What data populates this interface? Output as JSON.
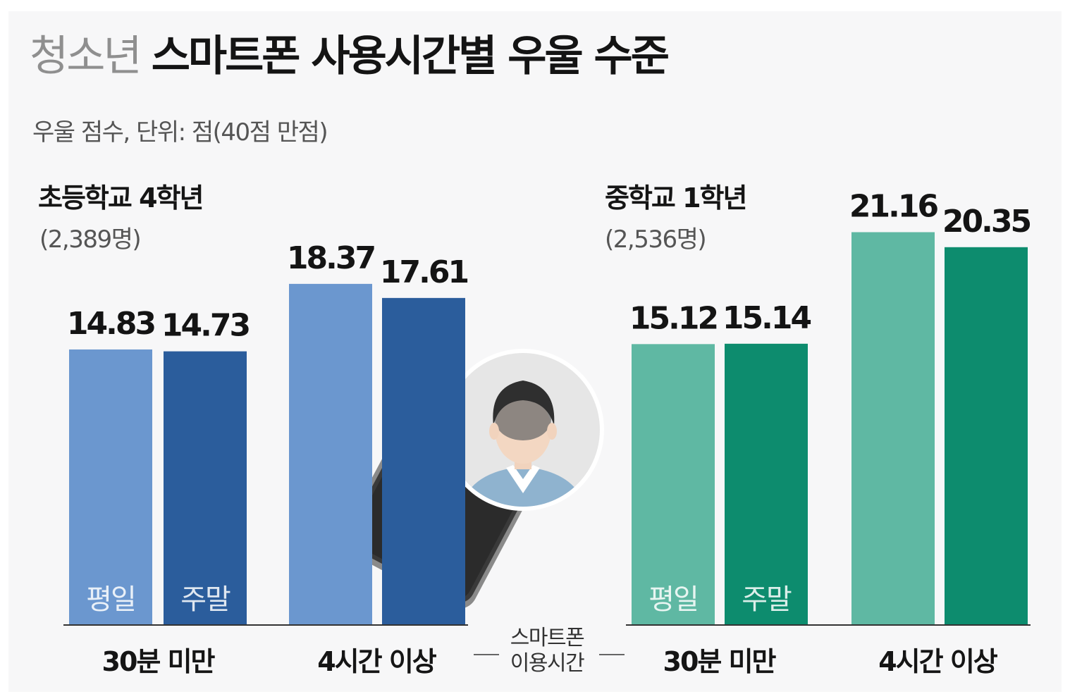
{
  "title": {
    "light": "청소년",
    "bold": "스마트폰 사용시간별 우울 수준"
  },
  "subtitle": "우울 점수, 단위: 점(40점 만점)",
  "colors": {
    "elementary_weekday": "#6b97cf",
    "elementary_weekend": "#2b5d9c",
    "middle_weekday": "#5fb8a3",
    "middle_weekend": "#0d8c6e",
    "background": "#f7f7f8"
  },
  "chart_data": {
    "type": "bar",
    "title": "청소년 스마트폰 사용시간별 우울 수준",
    "subtitle": "우울 점수, 단위: 점(40점 만점)",
    "xlabel": "스마트폰 이용시간",
    "ylim": [
      0,
      25
    ],
    "legend": [
      "평일",
      "주말"
    ],
    "groups": [
      {
        "name": "초등학교 4학년",
        "count_label": "(2,389명)",
        "categories": [
          "30분 미만",
          "4시간 이상"
        ],
        "series": [
          {
            "name": "평일",
            "values": [
              14.83,
              18.37
            ]
          },
          {
            "name": "주말",
            "values": [
              14.73,
              17.61
            ]
          }
        ]
      },
      {
        "name": "중학교 1학년",
        "count_label": "(2,536명)",
        "categories": [
          "30분 미만",
          "4시간 이상"
        ],
        "series": [
          {
            "name": "평일",
            "values": [
              15.12,
              21.16
            ]
          },
          {
            "name": "주말",
            "values": [
              15.14,
              20.35
            ]
          }
        ]
      }
    ]
  },
  "labels": {
    "elementary": {
      "name": "초등학교 4학년",
      "count": "(2,389명)",
      "cat_short": "30분 미만",
      "cat_long": "4시간 이상",
      "weekday": "평일",
      "weekend": "주말"
    },
    "middle": {
      "name": "중학교 1학년",
      "count": "(2,536명)",
      "cat_short": "30분 미만",
      "cat_long": "4시간 이상",
      "weekday": "평일",
      "weekend": "주말"
    },
    "center_axis_line1": "스마트폰",
    "center_axis_line2": "이용시간"
  },
  "values_text": {
    "e_short_weekday": "14.83",
    "e_short_weekend": "14.73",
    "e_long_weekday": "18.37",
    "e_long_weekend": "17.61",
    "m_short_weekday": "15.12",
    "m_short_weekend": "15.14",
    "m_long_weekday": "21.16",
    "m_long_weekend": "20.35"
  },
  "illustration": {
    "icons": [
      "smartphone-icon",
      "student-avatar-icon"
    ]
  }
}
